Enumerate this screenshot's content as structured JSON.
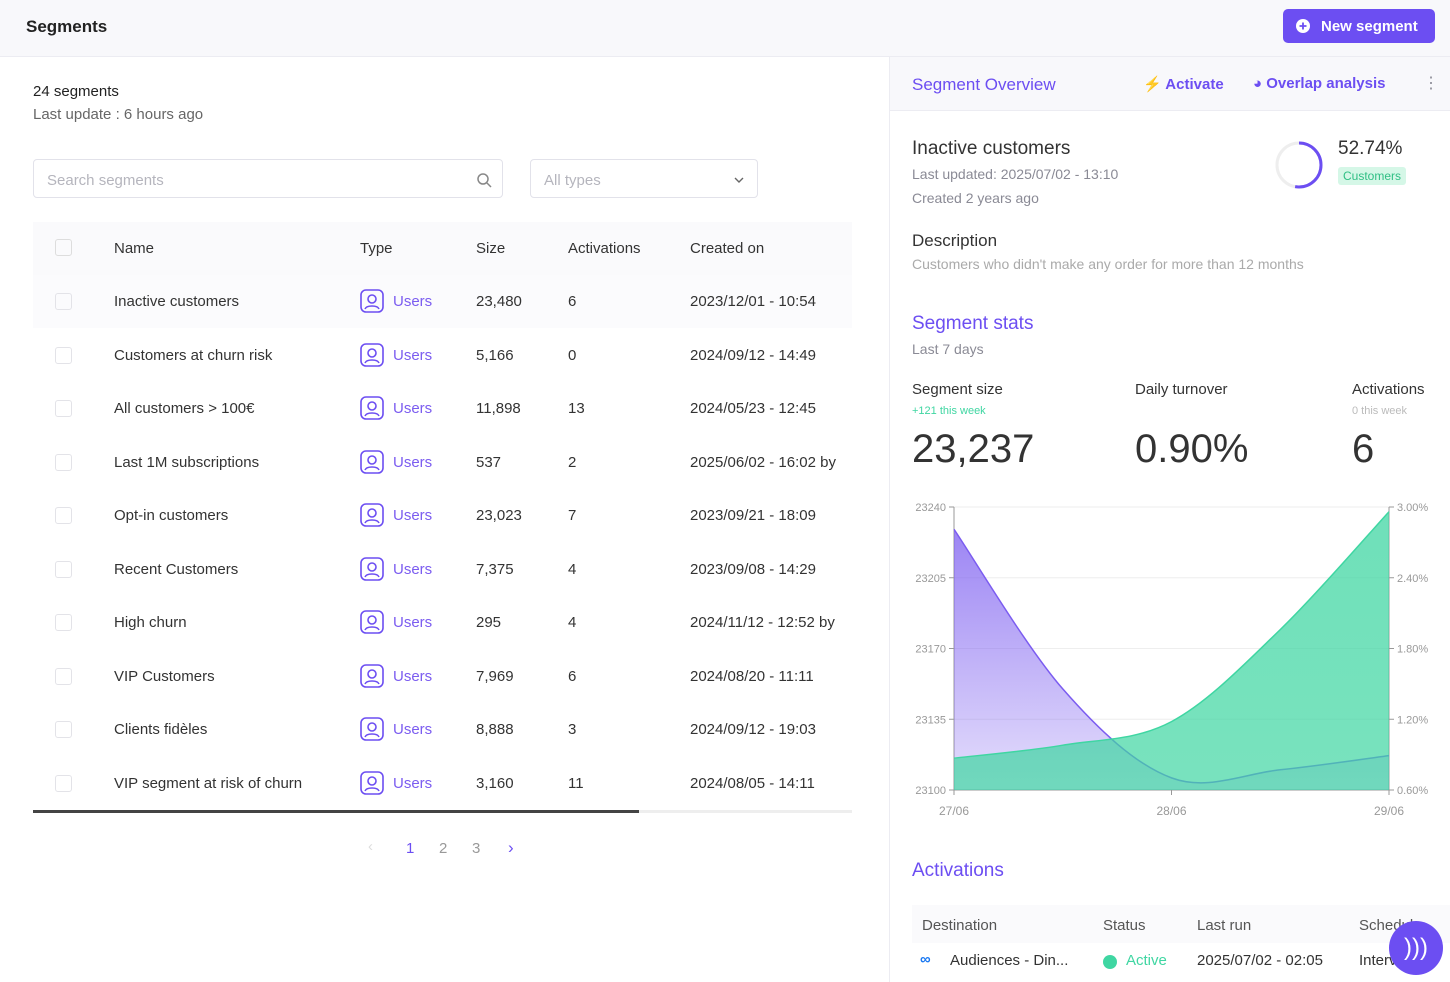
{
  "header": {
    "title": "Segments",
    "new_button": "New segment"
  },
  "left": {
    "count": "24 segments",
    "last_update": "Last update : 6 hours ago",
    "search_placeholder": "Search segments",
    "type_filter": "All types",
    "table": {
      "columns": [
        "Name",
        "Type",
        "Size",
        "Activations",
        "Created on"
      ],
      "rows": [
        [
          "Inactive customers",
          "Users",
          "23,480",
          "6",
          "2023/12/01 - 10:54"
        ],
        [
          "Customers at churn risk",
          "Users",
          "5,166",
          "0",
          "2024/09/12 - 14:49"
        ],
        [
          "All customers > 100€",
          "Users",
          "11,898",
          "13",
          "2024/05/23 - 12:45"
        ],
        [
          "Last 1M subscriptions",
          "Users",
          "537",
          "2",
          "2025/06/02 - 16:02  by"
        ],
        [
          "Opt-in customers",
          "Users",
          "23,023",
          "7",
          "2023/09/21 - 18:09"
        ],
        [
          "Recent Customers",
          "Users",
          "7,375",
          "4",
          "2023/09/08 - 14:29"
        ],
        [
          "High churn",
          "Users",
          "295",
          "4",
          "2024/11/12 - 12:52  by"
        ],
        [
          "VIP Customers",
          "Users",
          "7,969",
          "6",
          "2024/08/20 - 11:11"
        ],
        [
          "Clients fidèles",
          "Users",
          "8,888",
          "3",
          "2024/09/12 - 19:03"
        ],
        [
          "VIP segment at risk of churn",
          "Users",
          "3,160",
          "11",
          "2024/08/05 - 14:11"
        ]
      ]
    },
    "pages": [
      "1",
      "2",
      "3"
    ]
  },
  "right": {
    "tabs": [
      "Segment Overview",
      "Activate",
      "Overlap analysis"
    ],
    "segment_name": "Inactive customers",
    "last_updated": "Last updated: 2025/07/02 - 13:10",
    "created": "Created 2 years ago",
    "share": {
      "value": 52.74,
      "label": "52.74%"
    },
    "badge": "Customers",
    "description_title": "Description",
    "description": "Customers who didn't make any order for more than 12 months",
    "stats_title": "Segment stats",
    "stats_period": "Last 7 days",
    "stats": [
      {
        "label": "Segment size",
        "delta": "+121 this week",
        "value": "23,237"
      },
      {
        "label": "Daily turnover",
        "value": "0.90%"
      },
      {
        "label": "Activations",
        "delta": "0 this week",
        "value": "6"
      }
    ],
    "activations_title": "Activations",
    "activations_columns": [
      "Destination",
      "Status",
      "Last run",
      "Schedule"
    ],
    "activations_rows": [
      [
        "Audiences - Din...",
        "Active",
        "2025/07/02 - 02:05",
        "Interval"
      ]
    ]
  },
  "chart_data": {
    "type": "area",
    "x": [
      "27/06",
      null,
      "28/06",
      null,
      "29/06"
    ],
    "series": [
      {
        "name": "Segment size",
        "color": "#7b5cf0",
        "values": [
          23229,
          23150,
          23106,
          23110,
          23117
        ]
      },
      {
        "name": "Daily turnover",
        "color": "#3fd6a2",
        "axis": "y2",
        "values": [
          0.87,
          0.98,
          1.18,
          1.96,
          2.96
        ]
      }
    ],
    "ylim": [
      23100,
      23240
    ],
    "yticks": [
      23100,
      23135,
      23170,
      23205,
      23240
    ],
    "y2lim": [
      0.6,
      3
    ],
    "y2ticks": [
      {
        "value": 0.6,
        "label": "0.60%"
      },
      {
        "value": 1.2,
        "label": "1.20%"
      },
      {
        "value": 1.8,
        "label": "1.80%"
      },
      {
        "value": 2.4,
        "label": "2.40%"
      },
      {
        "value": 3,
        "label": "3.00%"
      }
    ],
    "grid": true
  }
}
